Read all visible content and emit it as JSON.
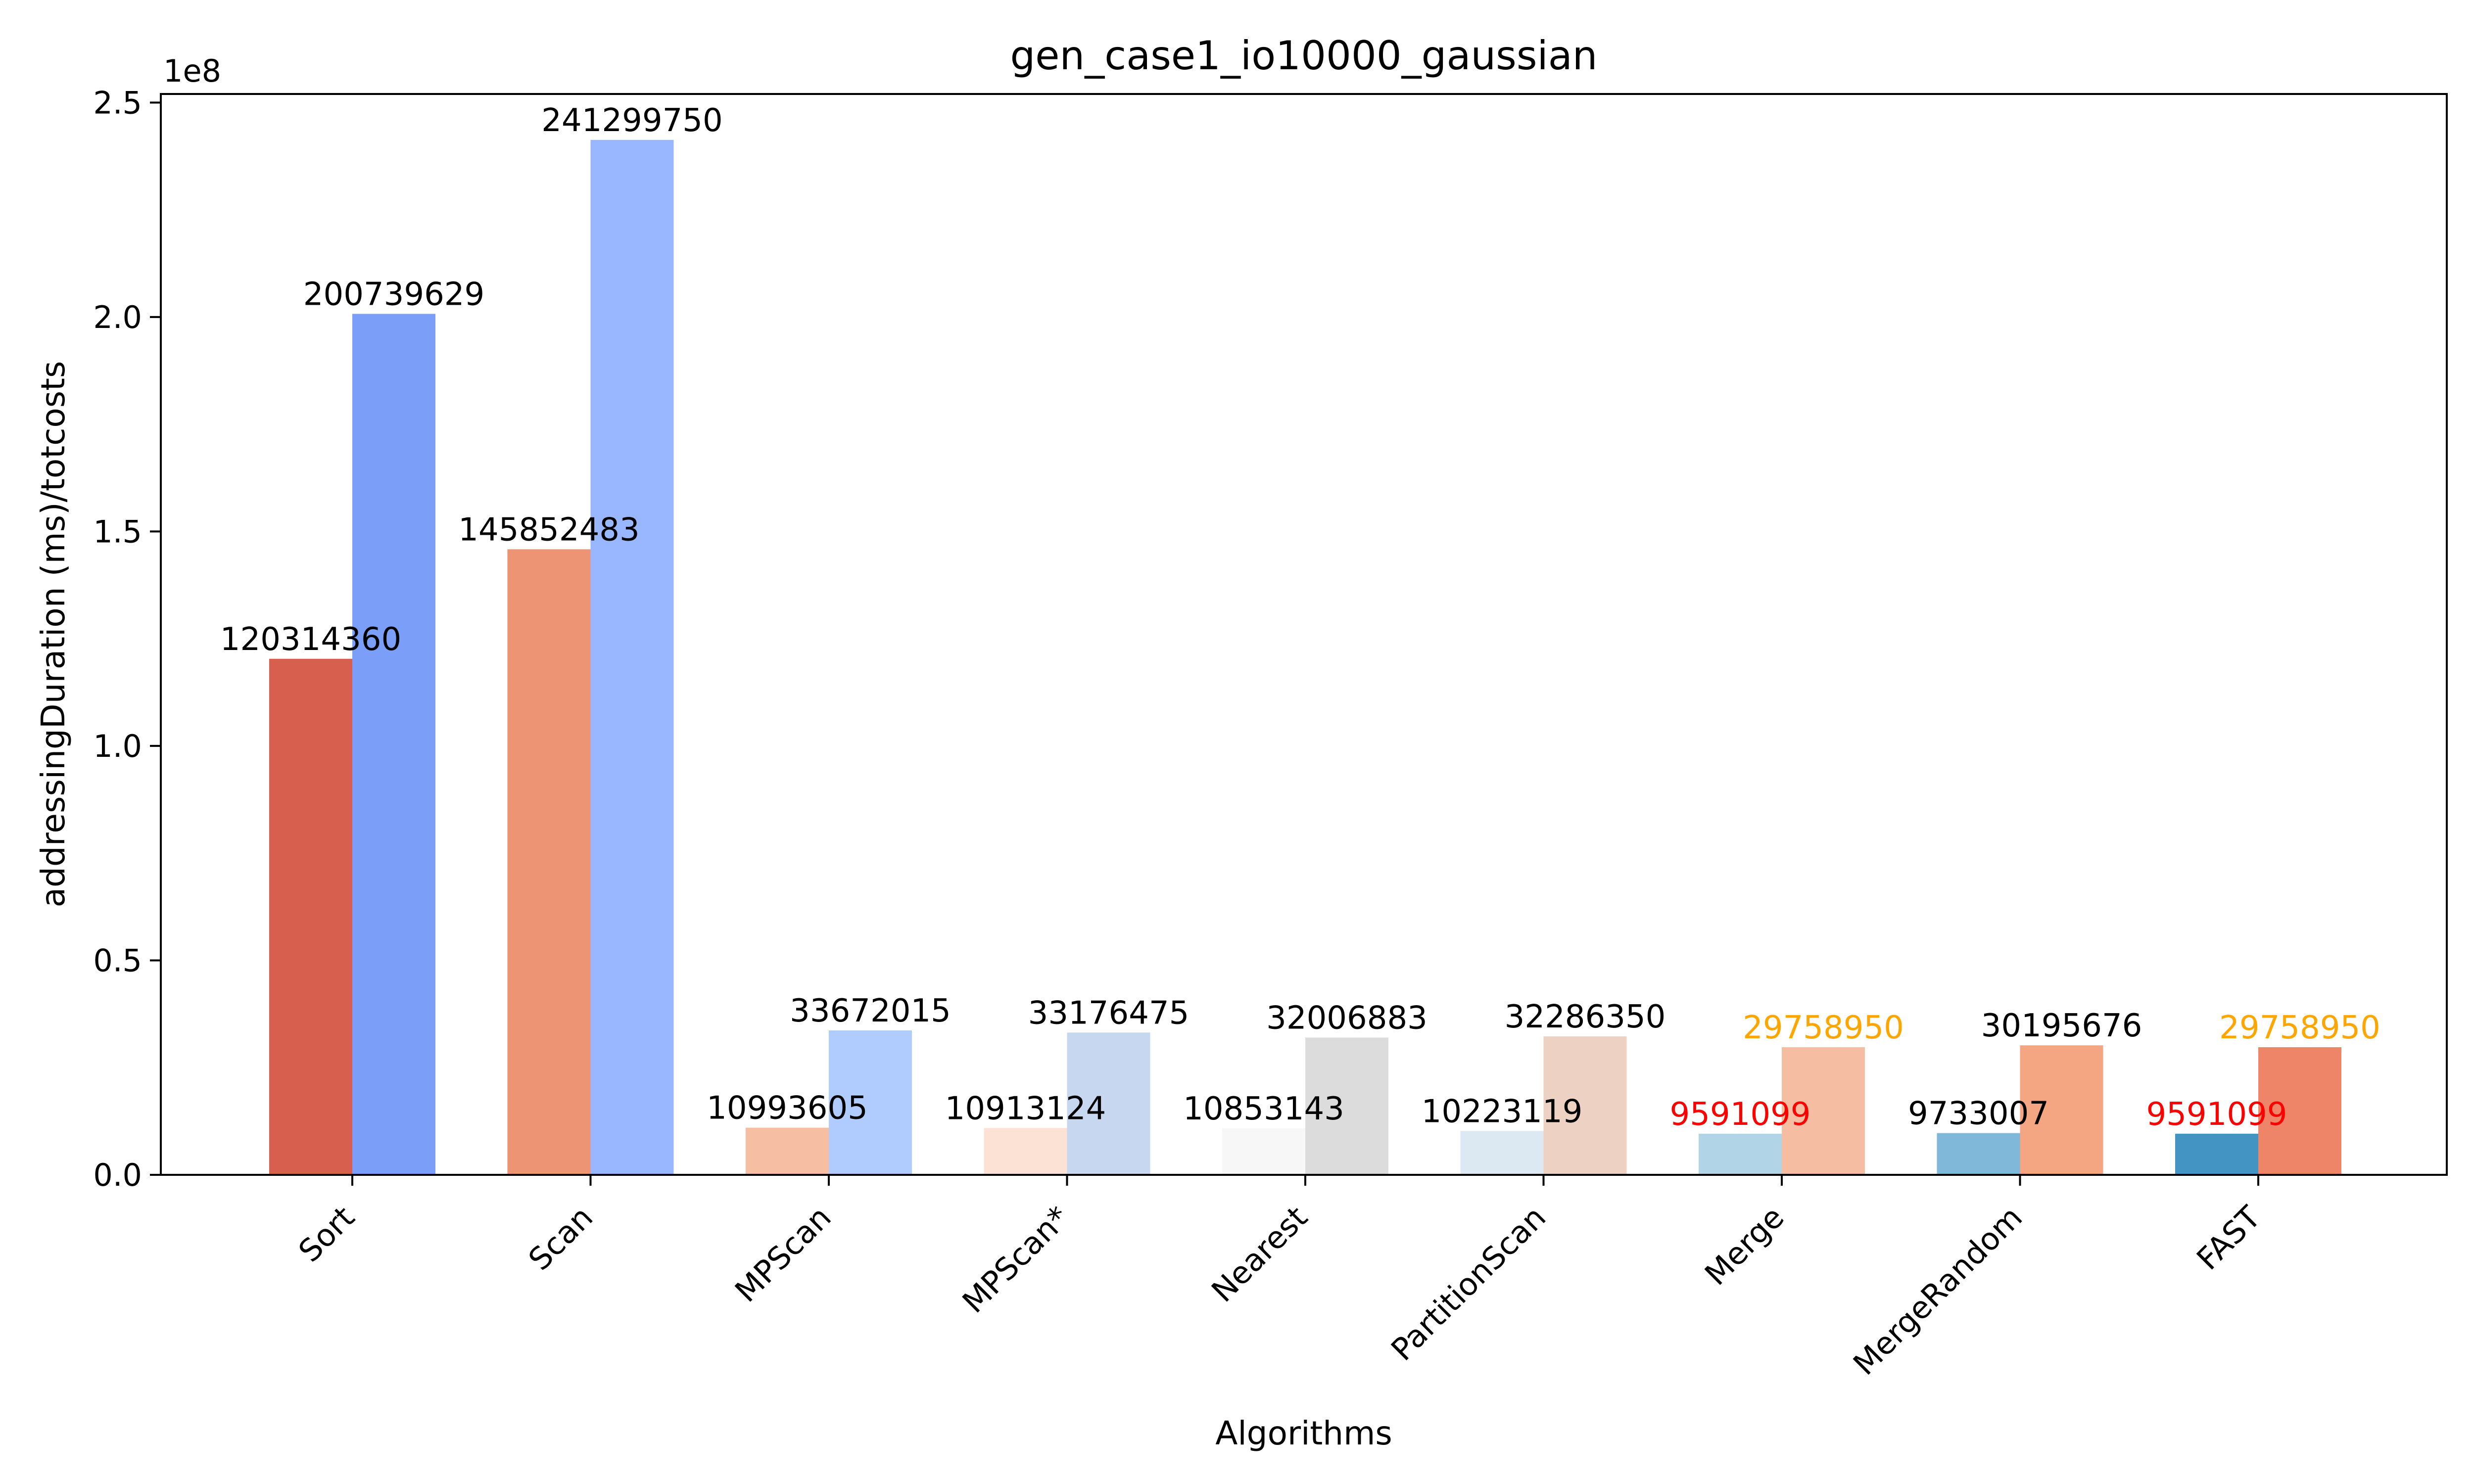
{
  "chart_data": {
    "type": "bar",
    "title": "gen_case1_io10000_gaussian",
    "xlabel": "Algorithms",
    "ylabel": "addressingDuration (ms)/totcosts",
    "y_offset_label": "1e8",
    "ylim": [
      0,
      252000000
    ],
    "yticks": [
      0,
      50000000,
      100000000,
      150000000,
      200000000,
      250000000
    ],
    "ytick_labels": [
      "0.0",
      "0.5",
      "1.0",
      "1.5",
      "2.0",
      "2.5"
    ],
    "grid": false,
    "legend": "none",
    "categories": [
      "Sort",
      "Scan",
      "MPScan",
      "MPScan*",
      "Nearest",
      "PartitionScan",
      "Merge",
      "MergeRandom",
      "FAST"
    ],
    "series": [
      {
        "values": [
          120314360,
          145852483,
          10993605,
          10913124,
          10853143,
          10223119,
          9591099,
          9733007,
          9591099
        ],
        "labels": [
          "120314360",
          "145852483",
          "10993605",
          "10913124",
          "10853143",
          "10223119",
          "9591099",
          "9733007",
          "9591099"
        ],
        "colors": [
          "#d6604d",
          "#ec9474",
          "#f6bfa4",
          "#fbe2d4",
          "#f7f7f7",
          "#dce9f3",
          "#b1d4e7",
          "#7fb8d8",
          "#4393c3"
        ],
        "label_colors": [
          "#000000",
          "#000000",
          "#000000",
          "#000000",
          "#000000",
          "#000000",
          "#ff0000",
          "#000000",
          "#ff0000"
        ]
      },
      {
        "values": [
          200739629,
          241299750,
          33672015,
          33176475,
          32006883,
          32286350,
          29758950,
          30195676,
          29758950
        ],
        "labels": [
          "200739629",
          "241299750",
          "33672015",
          "33176475",
          "32006883",
          "32286350",
          "29758950",
          "30195676",
          "29758950"
        ],
        "colors": [
          "#7b9ff9",
          "#98b7fe",
          "#b0cbfd",
          "#c8d7f0",
          "#dcdcdc",
          "#edd1c2",
          "#f5bea3",
          "#f4a582",
          "#ee8468"
        ],
        "label_colors": [
          "#000000",
          "#000000",
          "#000000",
          "#000000",
          "#000000",
          "#000000",
          "#ffa500",
          "#000000",
          "#ffa500"
        ]
      }
    ]
  }
}
